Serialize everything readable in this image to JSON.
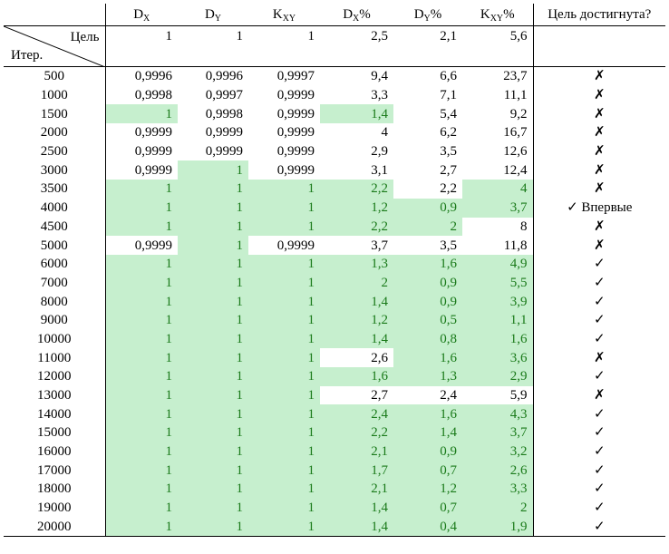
{
  "table": {
    "headers": {
      "dx": {
        "main": "D",
        "sub": "X"
      },
      "dy": {
        "main": "D",
        "sub": "Y"
      },
      "kxy": {
        "main": "K",
        "sub": "XY"
      },
      "dxp": {
        "main": "D",
        "sub": "X",
        "suffix": "%"
      },
      "dyp": {
        "main": "D",
        "sub": "Y",
        "suffix": "%"
      },
      "kxyp": {
        "main": "K",
        "sub": "XY",
        "suffix": "%"
      },
      "goal": "Цель достигнута?"
    },
    "corner": {
      "top": "Цель",
      "bottom": "Итер."
    },
    "goal_values": [
      "1",
      "1",
      "1",
      "2,5",
      "2,1",
      "5,6"
    ],
    "highlight_color": "#c6efce",
    "highlight_text_color": "#1a7a1a",
    "rows": [
      {
        "iter": "500",
        "v": [
          "0,9996",
          "0,9996",
          "0,9997",
          "9,4",
          "6,6",
          "23,7"
        ],
        "hl": [
          0,
          0,
          0,
          0,
          0,
          0
        ],
        "flag": "✗"
      },
      {
        "iter": "1000",
        "v": [
          "0,9998",
          "0,9997",
          "0,9999",
          "3,3",
          "7,1",
          "11,1"
        ],
        "hl": [
          0,
          0,
          0,
          0,
          0,
          0
        ],
        "flag": "✗"
      },
      {
        "iter": "1500",
        "v": [
          "1",
          "0,9998",
          "0,9999",
          "1,4",
          "5,4",
          "9,2"
        ],
        "hl": [
          1,
          0,
          0,
          1,
          0,
          0
        ],
        "flag": "✗"
      },
      {
        "iter": "2000",
        "v": [
          "0,9999",
          "0,9999",
          "0,9999",
          "4",
          "6,2",
          "16,7"
        ],
        "hl": [
          0,
          0,
          0,
          0,
          0,
          0
        ],
        "flag": "✗"
      },
      {
        "iter": "2500",
        "v": [
          "0,9999",
          "0,9999",
          "0,9999",
          "2,9",
          "3,5",
          "12,6"
        ],
        "hl": [
          0,
          0,
          0,
          0,
          0,
          0
        ],
        "flag": "✗"
      },
      {
        "iter": "3000",
        "v": [
          "0,9999",
          "1",
          "0,9999",
          "3,1",
          "2,7",
          "12,4"
        ],
        "hl": [
          0,
          1,
          0,
          0,
          0,
          0
        ],
        "flag": "✗"
      },
      {
        "iter": "3500",
        "v": [
          "1",
          "1",
          "1",
          "2,2",
          "2,2",
          "4"
        ],
        "hl": [
          1,
          1,
          1,
          1,
          0,
          1
        ],
        "flag": "✗"
      },
      {
        "iter": "4000",
        "v": [
          "1",
          "1",
          "1",
          "1,2",
          "0,9",
          "3,7"
        ],
        "hl": [
          1,
          1,
          1,
          1,
          1,
          1
        ],
        "flag": "✓ Впервые"
      },
      {
        "iter": "4500",
        "v": [
          "1",
          "1",
          "1",
          "2,2",
          "2",
          "8"
        ],
        "hl": [
          1,
          1,
          1,
          1,
          1,
          0
        ],
        "flag": "✗"
      },
      {
        "iter": "5000",
        "v": [
          "0,9999",
          "1",
          "0,9999",
          "3,7",
          "3,5",
          "11,8"
        ],
        "hl": [
          0,
          1,
          0,
          0,
          0,
          0
        ],
        "flag": "✗"
      },
      {
        "iter": "6000",
        "v": [
          "1",
          "1",
          "1",
          "1,3",
          "1,6",
          "4,9"
        ],
        "hl": [
          1,
          1,
          1,
          1,
          1,
          1
        ],
        "flag": "✓"
      },
      {
        "iter": "7000",
        "v": [
          "1",
          "1",
          "1",
          "2",
          "0,9",
          "5,5"
        ],
        "hl": [
          1,
          1,
          1,
          1,
          1,
          1
        ],
        "flag": "✓"
      },
      {
        "iter": "8000",
        "v": [
          "1",
          "1",
          "1",
          "1,4",
          "0,9",
          "3,9"
        ],
        "hl": [
          1,
          1,
          1,
          1,
          1,
          1
        ],
        "flag": "✓"
      },
      {
        "iter": "9000",
        "v": [
          "1",
          "1",
          "1",
          "1,2",
          "0,5",
          "1,1"
        ],
        "hl": [
          1,
          1,
          1,
          1,
          1,
          1
        ],
        "flag": "✓"
      },
      {
        "iter": "10000",
        "v": [
          "1",
          "1",
          "1",
          "1,4",
          "0,8",
          "1,6"
        ],
        "hl": [
          1,
          1,
          1,
          1,
          1,
          1
        ],
        "flag": "✓"
      },
      {
        "iter": "11000",
        "v": [
          "1",
          "1",
          "1",
          "2,6",
          "1,6",
          "3,6"
        ],
        "hl": [
          1,
          1,
          1,
          0,
          1,
          1
        ],
        "flag": "✗"
      },
      {
        "iter": "12000",
        "v": [
          "1",
          "1",
          "1",
          "1,6",
          "1,3",
          "2,9"
        ],
        "hl": [
          1,
          1,
          1,
          1,
          1,
          1
        ],
        "flag": "✓"
      },
      {
        "iter": "13000",
        "v": [
          "1",
          "1",
          "1",
          "2,7",
          "2,4",
          "5,9"
        ],
        "hl": [
          1,
          1,
          1,
          0,
          0,
          0
        ],
        "flag": "✗"
      },
      {
        "iter": "14000",
        "v": [
          "1",
          "1",
          "1",
          "2,4",
          "1,6",
          "4,3"
        ],
        "hl": [
          1,
          1,
          1,
          1,
          1,
          1
        ],
        "flag": "✓"
      },
      {
        "iter": "15000",
        "v": [
          "1",
          "1",
          "1",
          "2,2",
          "1,4",
          "3,7"
        ],
        "hl": [
          1,
          1,
          1,
          1,
          1,
          1
        ],
        "flag": "✓"
      },
      {
        "iter": "16000",
        "v": [
          "1",
          "1",
          "1",
          "2,1",
          "0,9",
          "3,2"
        ],
        "hl": [
          1,
          1,
          1,
          1,
          1,
          1
        ],
        "flag": "✓"
      },
      {
        "iter": "17000",
        "v": [
          "1",
          "1",
          "1",
          "1,7",
          "0,7",
          "2,6"
        ],
        "hl": [
          1,
          1,
          1,
          1,
          1,
          1
        ],
        "flag": "✓"
      },
      {
        "iter": "18000",
        "v": [
          "1",
          "1",
          "1",
          "2,1",
          "1,2",
          "3,3"
        ],
        "hl": [
          1,
          1,
          1,
          1,
          1,
          1
        ],
        "flag": "✓"
      },
      {
        "iter": "19000",
        "v": [
          "1",
          "1",
          "1",
          "1,4",
          "0,7",
          "2"
        ],
        "hl": [
          1,
          1,
          1,
          1,
          1,
          1
        ],
        "flag": "✓"
      },
      {
        "iter": "20000",
        "v": [
          "1",
          "1",
          "1",
          "1,4",
          "0,4",
          "1,9"
        ],
        "hl": [
          1,
          1,
          1,
          1,
          1,
          1
        ],
        "flag": "✓"
      }
    ]
  }
}
